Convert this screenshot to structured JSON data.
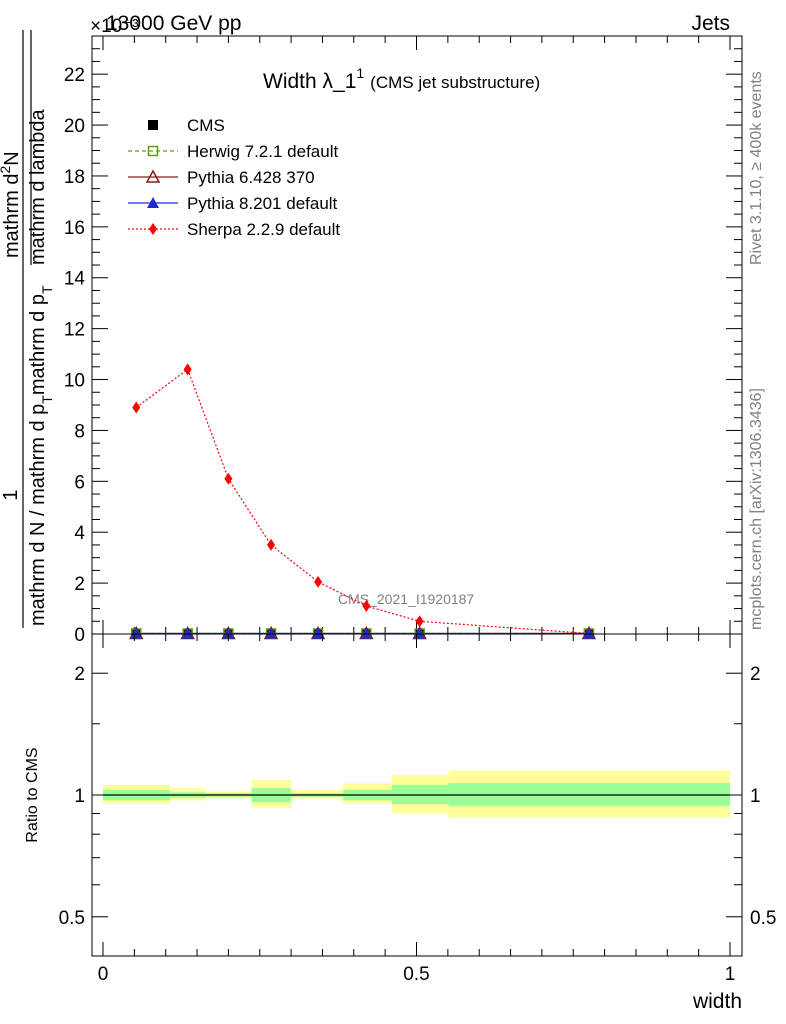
{
  "header": {
    "left": "13000 GeV pp",
    "right": "Jets",
    "exponent": "×10⁻³"
  },
  "side_labels": {
    "rivet": "Rivet 3.1.10, ≥ 400k events",
    "mcplots": "mcplots.cern.ch [arXiv:1306.3436]"
  },
  "watermark": "CMS_2021_I1920187",
  "colors": {
    "cms": "#000000",
    "herwig": "#5a9e1b",
    "pythia6": "#8b1a1a",
    "pythia8": "#1d2ccf",
    "sherpa": "#ff0000",
    "band_inner": "#99ff99",
    "band_outer": "#ffff99"
  },
  "chart_data": [
    {
      "type": "line",
      "title": "Width λ_1",
      "title_sup": "1",
      "subtitle": "(CMS jet substructure)",
      "ylabel_numerator": "1",
      "ylabel_denominator": "mathrm d N / mathrm d p_T mathrm d p_T mathrm d lambda",
      "ylabel_inner_numerator": "mathrm d²N",
      "ylabel_parts": {
        "one": "1",
        "den": "mathrm d N / mathrm d p",
        "den_sub": "T",
        "mid": "mathrm d p",
        "mid_sub": "T",
        "tail": "mathrm d lambda",
        "num": "mathrm d",
        "num_sup": "2",
        "num_tail": "N"
      },
      "xlim": [
        0,
        1
      ],
      "ylim": [
        0,
        23.5
      ],
      "y_scale_factor": "1e-3",
      "yticks": [
        0,
        2,
        4,
        6,
        8,
        10,
        12,
        14,
        16,
        18,
        20,
        22
      ],
      "legend": [
        {
          "name": "CMS",
          "key": "cms"
        },
        {
          "name": "Herwig 7.2.1 default",
          "key": "herwig"
        },
        {
          "name": "Pythia 6.428 370",
          "key": "pythia6"
        },
        {
          "name": "Pythia 8.201 default",
          "key": "pythia8"
        },
        {
          "name": "Sherpa 2.2.9 default",
          "key": "sherpa"
        }
      ],
      "series": [
        {
          "name": "CMS",
          "x": [
            0.053,
            0.135,
            0.2,
            0.268,
            0.343,
            0.42,
            0.505,
            0.775
          ],
          "y": [
            0.02,
            0.02,
            0.02,
            0.02,
            0.02,
            0.02,
            0.02,
            0.02
          ]
        },
        {
          "name": "Herwig 7.2.1 default",
          "x": [
            0.053,
            0.135,
            0.2,
            0.268,
            0.343,
            0.42,
            0.505,
            0.775
          ],
          "y": [
            0.02,
            0.02,
            0.02,
            0.02,
            0.02,
            0.02,
            0.02,
            0.02
          ]
        },
        {
          "name": "Pythia 6.428 370",
          "x": [
            0.053,
            0.135,
            0.2,
            0.268,
            0.343,
            0.42,
            0.505,
            0.775
          ],
          "y": [
            0.02,
            0.02,
            0.02,
            0.02,
            0.02,
            0.02,
            0.02,
            0.02
          ]
        },
        {
          "name": "Pythia 8.201 default",
          "x": [
            0.053,
            0.135,
            0.2,
            0.268,
            0.343,
            0.42,
            0.505,
            0.775
          ],
          "y": [
            0.02,
            0.02,
            0.02,
            0.02,
            0.02,
            0.02,
            0.02,
            0.02
          ]
        },
        {
          "name": "Sherpa 2.2.9 default",
          "x": [
            0.053,
            0.135,
            0.2,
            0.268,
            0.343,
            0.42,
            0.505,
            0.775
          ],
          "y": [
            8.9,
            10.4,
            6.1,
            3.5,
            2.05,
            1.1,
            0.5,
            0.02
          ]
        }
      ],
      "grid": false
    },
    {
      "type": "area",
      "ylabel": "Ratio to CMS",
      "xlabel": "width",
      "xlim": [
        0,
        1
      ],
      "ylim": [
        0.4,
        2.5
      ],
      "y_scale": "log",
      "yticks": [
        0.5,
        1,
        2
      ],
      "ytick_labels": [
        "0.5",
        "1",
        "2"
      ],
      "xticks": [
        0,
        0.5,
        1
      ],
      "xtick_labels": [
        "0",
        "0.5",
        "1"
      ],
      "bins": [
        {
          "x0": 0.0,
          "x1": 0.107,
          "inner": [
            0.97,
            1.03
          ],
          "outer": [
            0.95,
            1.06
          ]
        },
        {
          "x0": 0.107,
          "x1": 0.163,
          "inner": [
            0.985,
            1.015
          ],
          "outer": [
            0.97,
            1.04
          ]
        },
        {
          "x0": 0.163,
          "x1": 0.237,
          "inner": [
            0.99,
            1.01
          ],
          "outer": [
            0.98,
            1.02
          ]
        },
        {
          "x0": 0.237,
          "x1": 0.3,
          "inner": [
            0.96,
            1.04
          ],
          "outer": [
            0.93,
            1.09
          ]
        },
        {
          "x0": 0.3,
          "x1": 0.383,
          "inner": [
            0.99,
            1.01
          ],
          "outer": [
            0.98,
            1.03
          ]
        },
        {
          "x0": 0.383,
          "x1": 0.461,
          "inner": [
            0.97,
            1.03
          ],
          "outer": [
            0.95,
            1.07
          ]
        },
        {
          "x0": 0.461,
          "x1": 0.551,
          "inner": [
            0.95,
            1.06
          ],
          "outer": [
            0.9,
            1.12
          ]
        },
        {
          "x0": 0.551,
          "x1": 1.0,
          "inner": [
            0.94,
            1.07
          ],
          "outer": [
            0.88,
            1.15
          ]
        }
      ],
      "reference": 1
    }
  ]
}
